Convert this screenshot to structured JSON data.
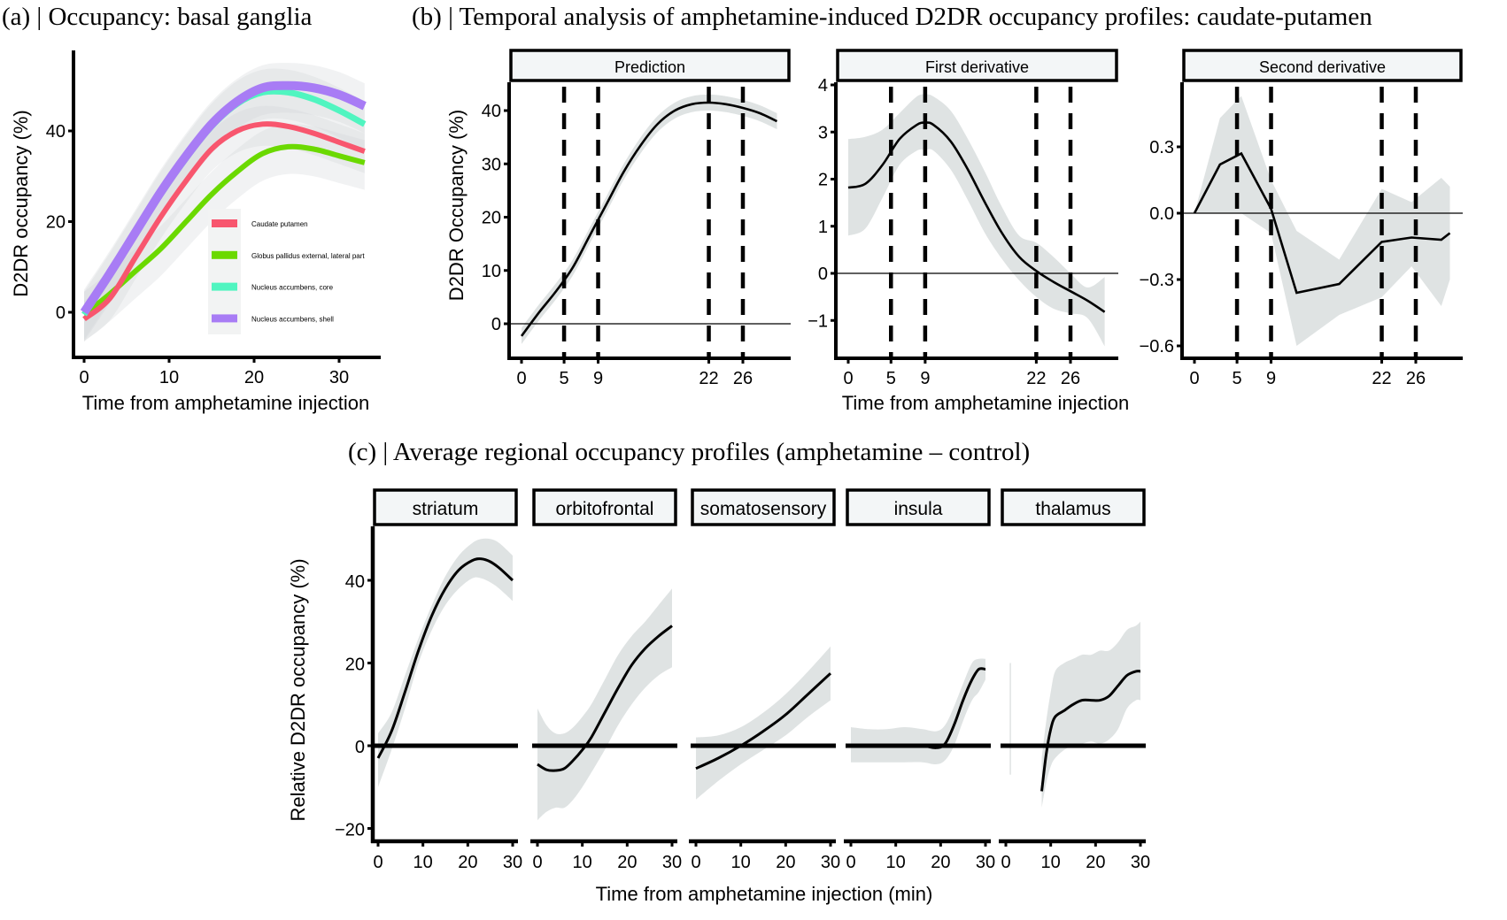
{
  "chart_data": [
    {
      "id": "a",
      "type": "line",
      "title": "(a) | Occupancy: basal ganglia",
      "xlabel": "Time from amphetamine injection",
      "ylabel": "D2DR occupancy (%)",
      "xlim": [
        -0.5,
        35
      ],
      "ylim": [
        -10,
        57
      ],
      "xticks": [
        0,
        10,
        20,
        30
      ],
      "yticks": [
        0,
        20,
        40
      ],
      "ribbon": true,
      "legend_position": "bottom-right",
      "x": [
        0,
        3,
        6,
        9,
        12,
        15,
        18,
        21,
        24,
        27,
        30,
        33
      ],
      "series": [
        {
          "name": "Caudate putamen",
          "color": "#f8566e",
          "values": [
            -1.5,
            3,
            12,
            21,
            29,
            36,
            40,
            41.5,
            41,
            39.5,
            37.5,
            35.5
          ],
          "ci": 4
        },
        {
          "name": "Globus pallidus external, lateral part",
          "color": "#6bd900",
          "values": [
            -0.5,
            4,
            9,
            14,
            20,
            26,
            31,
            35,
            36.5,
            36,
            34.5,
            33
          ],
          "ci": 5
        },
        {
          "name": "Nucleus accumbens, core",
          "color": "#50f5c0",
          "values": [
            -0.5,
            8,
            17,
            26,
            34,
            41,
            46,
            48.5,
            48.5,
            47,
            44.5,
            41.5
          ],
          "ci": 5
        },
        {
          "name": "Nucleus accumbens, shell",
          "color": "#a87cf5",
          "values": [
            0,
            8.5,
            17.5,
            26.5,
            34.5,
            41.5,
            46.5,
            49.5,
            50,
            49.5,
            48,
            45.5
          ],
          "ci": 5
        }
      ]
    },
    {
      "id": "b",
      "title": "(b) | Temporal analysis of amphetamine-induced D2DR occupancy profiles: caudate-putamen",
      "xlabel": "Time from amphetamine injection",
      "ylabel": "D2DR Occupancy (%)",
      "xticks": [
        0,
        5,
        9,
        22,
        26
      ],
      "vlines": [
        5,
        9,
        22,
        26
      ],
      "facets": [
        {
          "strip": "Prediction",
          "type": "line",
          "xlim": [
            -1.5,
            31.5
          ],
          "ylim": [
            -7,
            45
          ],
          "yticks": [
            0,
            10,
            20,
            30,
            40
          ],
          "ytick_labels": [
            "0",
            "10",
            "20",
            "30",
            "40"
          ],
          "hline": 0,
          "x": [
            0,
            2,
            4,
            6,
            8,
            10,
            12,
            14,
            16,
            18,
            20,
            22,
            24,
            26,
            28,
            30
          ],
          "values": [
            -2.3,
            2,
            6,
            10.5,
            16.5,
            22.5,
            28.5,
            33.5,
            37.5,
            40,
            41.2,
            41.5,
            41.2,
            40.5,
            39.5,
            38
          ],
          "ci": 1.5
        },
        {
          "strip": "First derivative",
          "type": "line",
          "xlim": [
            -1.5,
            31.5
          ],
          "ylim": [
            -1.8,
            4.2
          ],
          "yticks": [
            -1,
            0,
            1,
            2,
            3,
            4
          ],
          "ytick_labels": [
            "−1",
            "0",
            "1",
            "2",
            "3",
            "4"
          ],
          "hline": 0,
          "x": [
            0,
            2,
            4,
            6,
            8,
            9,
            10,
            12,
            14,
            16,
            18,
            20,
            22,
            24,
            26,
            28,
            30
          ],
          "values": [
            1.82,
            1.9,
            2.3,
            2.85,
            3.15,
            3.2,
            3.15,
            2.8,
            2.2,
            1.5,
            0.85,
            0.35,
            0.05,
            -0.18,
            -0.38,
            -0.58,
            -0.82
          ],
          "ci_upper": [
            2.85,
            2.9,
            3.05,
            3.4,
            3.75,
            3.8,
            3.75,
            3.45,
            2.85,
            2.15,
            1.4,
            0.8,
            0.65,
            0.35,
            0.0,
            -0.3,
            -0.08
          ],
          "ci_lower": [
            0.8,
            0.95,
            1.6,
            2.3,
            2.6,
            2.62,
            2.6,
            2.2,
            1.55,
            0.85,
            0.3,
            -0.15,
            -0.5,
            -0.75,
            -0.85,
            -0.95,
            -1.55
          ]
        },
        {
          "strip": "Second derivative",
          "type": "line",
          "xlim": [
            -1.5,
            31.5
          ],
          "ylim": [
            -0.66,
            0.55
          ],
          "yticks": [
            -0.6,
            -0.3,
            0.0,
            0.3
          ],
          "ytick_labels": [
            "−0.6",
            "−0.3",
            "0.0",
            "0.3"
          ],
          "hline": 0,
          "x": [
            0,
            3,
            5.5,
            9,
            12,
            17,
            22,
            25.5,
            29,
            30
          ],
          "values": [
            0.0,
            0.22,
            0.27,
            0.02,
            -0.36,
            -0.32,
            -0.13,
            -0.11,
            -0.12,
            -0.09
          ],
          "ci_upper": [
            0.0,
            0.43,
            0.53,
            0.15,
            -0.08,
            -0.21,
            0.11,
            0.05,
            0.16,
            0.12
          ],
          "ci_lower": [
            0.0,
            0.0,
            0.0,
            -0.09,
            -0.6,
            -0.46,
            -0.38,
            -0.24,
            -0.42,
            -0.3
          ]
        }
      ]
    },
    {
      "id": "c",
      "title": "(c) | Average regional occupancy profiles (amphetamine – control)",
      "xlabel": "Time from amphetamine injection (min)",
      "ylabel": "Relative D2DR occupancy (%)",
      "xlim": [
        -1.2,
        32.5
      ],
      "ylim": [
        -23.5,
        53
      ],
      "xticks": [
        0,
        10,
        20,
        30
      ],
      "yticks": [
        -20,
        0,
        20,
        40
      ],
      "ytick_labels": [
        "−20",
        "0",
        "20",
        "40"
      ],
      "hline": 0,
      "facets": [
        {
          "strip": "striatum",
          "type": "line",
          "x": [
            0,
            3,
            6,
            9,
            12,
            15,
            18,
            21,
            23,
            25,
            27,
            30
          ],
          "values": [
            -3,
            3.5,
            13,
            23,
            31.5,
            38,
            42.5,
            44.8,
            45.2,
            44.5,
            43,
            40
          ],
          "ci_upper": [
            3,
            8,
            17,
            26,
            34,
            41,
            46,
            49,
            50,
            50,
            49,
            46
          ],
          "ci_lower": [
            -10,
            -1,
            9,
            20,
            28,
            34,
            38,
            40.5,
            40.5,
            39.5,
            38,
            35
          ]
        },
        {
          "strip": "orbitofrontal",
          "type": "line",
          "x": [
            0,
            2,
            4,
            6,
            8,
            10,
            12,
            15,
            18,
            21,
            24,
            27,
            30
          ],
          "values": [
            -4.5,
            -5.8,
            -6,
            -5.5,
            -3.5,
            -1,
            2,
            8,
            14,
            19.5,
            23.5,
            26.5,
            29
          ],
          "ci_upper": [
            9,
            5,
            3,
            3,
            4.5,
            7,
            10,
            16,
            22,
            26.5,
            30,
            34,
            38
          ],
          "ci_lower": [
            -18,
            -16,
            -15,
            -15,
            -13,
            -10,
            -6.5,
            -1,
            5,
            10,
            14,
            17,
            19
          ]
        },
        {
          "strip": "somatosensory",
          "type": "line",
          "x": [
            0,
            5,
            10,
            15,
            20,
            25,
            30
          ],
          "values": [
            -5.5,
            -3,
            0,
            3.5,
            7.5,
            12.5,
            17.5
          ],
          "ci_upper": [
            2,
            2.5,
            4.5,
            8,
            12.5,
            18,
            24
          ],
          "ci_lower": [
            -13,
            -8.5,
            -4.5,
            -1,
            2.5,
            7,
            11
          ]
        },
        {
          "strip": "insula",
          "type": "line",
          "x": [
            0,
            4,
            8,
            12,
            16,
            19,
            21,
            23,
            25,
            27,
            28.5,
            30
          ],
          "values": [
            0,
            0,
            0,
            0.2,
            0,
            -0.5,
            0.5,
            5,
            11,
            16,
            18.5,
            18.5
          ],
          "ci_upper": [
            4.5,
            4,
            4,
            4.5,
            4,
            3.5,
            5,
            9.5,
            15,
            20,
            21,
            21
          ],
          "ci_lower": [
            -4,
            -4,
            -4,
            -4,
            -4,
            -4.5,
            -3.5,
            0,
            6,
            11,
            13,
            16
          ]
        },
        {
          "strip": "thalamus",
          "type": "line",
          "x": [
            8,
            9,
            10,
            11,
            13,
            15,
            17,
            19,
            21,
            23,
            25,
            27,
            29,
            30
          ],
          "values": [
            -11,
            -2,
            4,
            7,
            8.5,
            10,
            11,
            11,
            11,
            12,
            14.5,
            17,
            18,
            18
          ],
          "ci_upper": [
            -3,
            6,
            13,
            18,
            20,
            21,
            22,
            22,
            23,
            23,
            25,
            28,
            29,
            30
          ],
          "ci_lower": [
            -15,
            -9,
            -5,
            -3,
            -1,
            0,
            0.5,
            1,
            0.5,
            1.5,
            4,
            9,
            11,
            11
          ],
          "stray_ribbon": {
            "x": 1,
            "ymin": -7,
            "ymax": 20
          }
        }
      ]
    }
  ]
}
